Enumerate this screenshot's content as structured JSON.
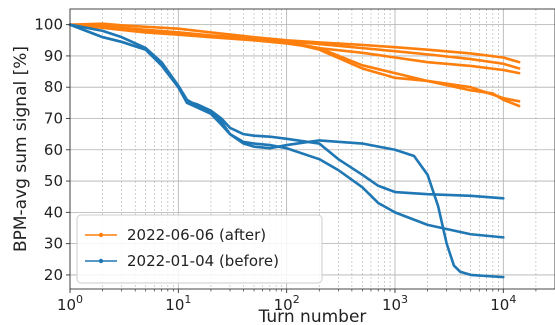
{
  "chart_data": {
    "type": "line",
    "title": "",
    "xlabel": "Turn number",
    "ylabel": "BPM-avg sum signal [%]",
    "xscale": "log",
    "xlim": [
      1,
      30000
    ],
    "ylim": [
      15.5,
      105
    ],
    "x_tick_labels": [
      {
        "value": 1,
        "base": "10",
        "exp": "0"
      },
      {
        "value": 10,
        "base": "10",
        "exp": "1"
      },
      {
        "value": 100,
        "base": "10",
        "exp": "2"
      },
      {
        "value": 1000,
        "base": "10",
        "exp": "3"
      },
      {
        "value": 10000,
        "base": "10",
        "exp": "4"
      }
    ],
    "y_ticks": [
      20,
      30,
      40,
      50,
      60,
      70,
      80,
      90,
      100
    ],
    "y_tick_labels": [
      "20",
      "30",
      "40",
      "50",
      "60",
      "70",
      "80",
      "90",
      "100"
    ],
    "grid": true,
    "legend_position": "lower-left",
    "series": [
      {
        "name": "2022-06-06 (after)",
        "color": "#ff7f0e",
        "x": [
          1,
          2,
          3,
          5,
          10,
          20,
          50,
          100,
          200,
          500,
          1000,
          2000,
          5000,
          10000,
          14000
        ],
        "values": [
          100,
          100.3,
          99.8,
          99.3,
          98.7,
          97.5,
          96,
          95,
          94.3,
          93.5,
          92.8,
          92,
          90.8,
          89.5,
          88
        ]
      },
      {
        "name": "",
        "color": "#ff7f0e",
        "x": [
          1,
          2,
          3,
          5,
          10,
          20,
          50,
          100,
          200,
          500,
          1000,
          2000,
          5000,
          10000,
          14000
        ],
        "values": [
          100,
          99.2,
          98.5,
          97.8,
          97,
          96.3,
          95.5,
          94.8,
          93.8,
          92.5,
          91.5,
          90.5,
          89,
          87.5,
          86
        ]
      },
      {
        "name": "",
        "color": "#ff7f0e",
        "x": [
          1,
          2,
          3,
          5,
          10,
          20,
          50,
          100,
          200,
          500,
          1000,
          2000,
          5000,
          10000,
          14000
        ],
        "values": [
          100,
          99,
          98.3,
          97.5,
          96.8,
          96,
          95,
          94,
          92.5,
          91,
          89.5,
          88,
          86.8,
          85.5,
          84.5
        ]
      },
      {
        "name": "",
        "color": "#ff7f0e",
        "x": [
          1,
          2,
          3,
          5,
          10,
          20,
          50,
          100,
          200,
          500,
          1000,
          2000,
          5000,
          10000,
          14000
        ],
        "values": [
          100,
          99.5,
          99,
          98.3,
          97.5,
          96.5,
          95.5,
          94.5,
          92,
          86,
          83,
          82,
          80,
          76.5,
          75.5
        ]
      },
      {
        "name": "",
        "color": "#ff7f0e",
        "x": [
          1,
          2,
          3,
          5,
          10,
          20,
          50,
          100,
          200,
          500,
          1000,
          2000,
          5000,
          8000,
          10000,
          14000
        ],
        "values": [
          100,
          99.5,
          99,
          98.3,
          97.5,
          96.5,
          95.5,
          94.5,
          92.5,
          87,
          84.5,
          82,
          79,
          78,
          76,
          74
        ]
      },
      {
        "name": "2022-01-04 (before)",
        "color": "#1f77b4",
        "x": [
          1,
          2,
          3,
          5,
          7,
          10,
          12,
          15,
          20,
          25,
          30,
          40,
          50,
          70,
          100,
          200,
          300,
          500,
          700,
          1000,
          2000,
          5000,
          10000
        ],
        "values": [
          100,
          96,
          94.5,
          92,
          87,
          80,
          75.5,
          74.5,
          72.5,
          70,
          67,
          65,
          64.5,
          64.2,
          63.5,
          62,
          57,
          52,
          48.5,
          46.5,
          45.8,
          45.3,
          44.5
        ]
      },
      {
        "name": "",
        "color": "#1f77b4",
        "x": [
          1,
          2,
          3,
          5,
          7,
          10,
          12,
          15,
          20,
          25,
          30,
          40,
          50,
          70,
          100,
          200,
          300,
          500,
          700,
          1000,
          2000,
          5000,
          10000
        ],
        "values": [
          100,
          96,
          94.5,
          92,
          87,
          80,
          75,
          73.5,
          71.5,
          68,
          65,
          62.5,
          62,
          61.5,
          60.5,
          57,
          53.5,
          48,
          43,
          40,
          36,
          33,
          32
        ]
      },
      {
        "name": "",
        "color": "#1f77b4",
        "x": [
          1,
          2,
          3,
          5,
          7,
          10,
          12,
          15,
          20,
          25,
          30,
          40,
          50,
          70,
          100,
          200,
          500,
          1000,
          1500,
          2000,
          2500,
          3000,
          3500,
          4000,
          5000,
          10000
        ],
        "values": [
          100,
          98,
          96,
          92.5,
          88,
          80.5,
          76,
          74,
          72,
          69,
          65,
          62,
          61,
          60.5,
          61.5,
          63,
          62,
          60,
          58,
          52,
          42,
          30,
          23,
          21,
          20,
          19.3
        ]
      }
    ]
  }
}
